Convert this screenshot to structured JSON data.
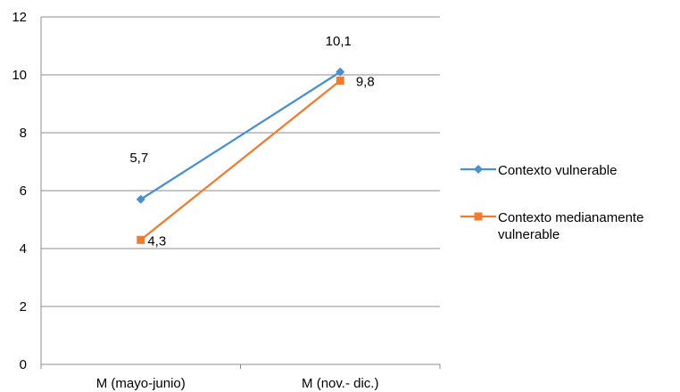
{
  "chart_data": {
    "type": "line",
    "categories": [
      "M (mayo-junio)",
      "M (nov.- dic.)"
    ],
    "series": [
      {
        "name": "Contexto vulnerable",
        "name_lines": [
          "Contexto vulnerable"
        ],
        "values": [
          5.7,
          10.1
        ],
        "labels": [
          "5,7",
          "10,1"
        ],
        "color": "#4a8fd0",
        "marker": "diamond"
      },
      {
        "name": "Contexto medianamente vulnerable",
        "name_lines": [
          "Contexto medianamente",
          "vulnerable"
        ],
        "values": [
          4.3,
          9.8
        ],
        "labels": [
          "4,3",
          "9,8"
        ],
        "color": "#f07b30",
        "marker": "square"
      }
    ],
    "ylim": [
      0,
      12
    ],
    "yticks": [
      "0",
      "2",
      "4",
      "6",
      "8",
      "10",
      "12"
    ],
    "ytick_values": [
      0,
      2,
      4,
      6,
      8,
      10,
      12
    ],
    "grid": true,
    "legend_position": "right",
    "title": "",
    "xlabel": "",
    "ylabel": ""
  }
}
